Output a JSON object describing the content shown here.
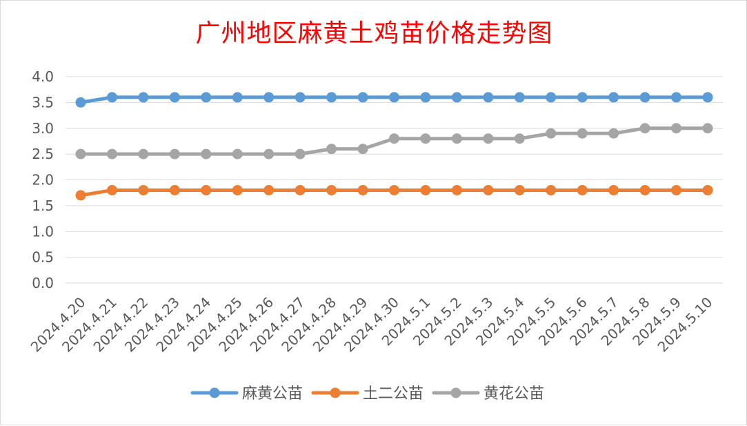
{
  "chart_data": {
    "type": "line",
    "title": "广州地区麻黄土鸡苗价格走势图",
    "xlabel": "",
    "ylabel": "",
    "ylim": [
      0,
      4
    ],
    "yticks": [
      "0.0",
      "0.5",
      "1.0",
      "1.5",
      "2.0",
      "2.5",
      "3.0",
      "3.5",
      "4.0"
    ],
    "grid": true,
    "legend_position": "bottom",
    "categories": [
      "2024.4.20",
      "2024.4.21",
      "2024.4.22",
      "2024.4.23",
      "2024.4.24",
      "2024.4.25",
      "2024.4.26",
      "2024.4.27",
      "2024.4.28",
      "2024.4.29",
      "2024.4.30",
      "2024.5.1",
      "2024.5.2",
      "2024.5.3",
      "2024.5.4",
      "2024.5.5",
      "2024.5.6",
      "2024.5.7",
      "2024.5.8",
      "2024.5.9",
      "2024.5.10"
    ],
    "series": [
      {
        "name": "麻黄公苗",
        "color": "#5b9bd5",
        "values": [
          3.5,
          3.6,
          3.6,
          3.6,
          3.6,
          3.6,
          3.6,
          3.6,
          3.6,
          3.6,
          3.6,
          3.6,
          3.6,
          3.6,
          3.6,
          3.6,
          3.6,
          3.6,
          3.6,
          3.6,
          3.6
        ]
      },
      {
        "name": "土二公苗",
        "color": "#ed7d31",
        "values": [
          1.7,
          1.8,
          1.8,
          1.8,
          1.8,
          1.8,
          1.8,
          1.8,
          1.8,
          1.8,
          1.8,
          1.8,
          1.8,
          1.8,
          1.8,
          1.8,
          1.8,
          1.8,
          1.8,
          1.8,
          1.8
        ]
      },
      {
        "name": "黄花公苗",
        "color": "#a5a5a5",
        "values": [
          2.5,
          2.5,
          2.5,
          2.5,
          2.5,
          2.5,
          2.5,
          2.5,
          2.6,
          2.6,
          2.8,
          2.8,
          2.8,
          2.8,
          2.8,
          2.9,
          2.9,
          2.9,
          3.0,
          3.0,
          3.0
        ]
      }
    ]
  }
}
